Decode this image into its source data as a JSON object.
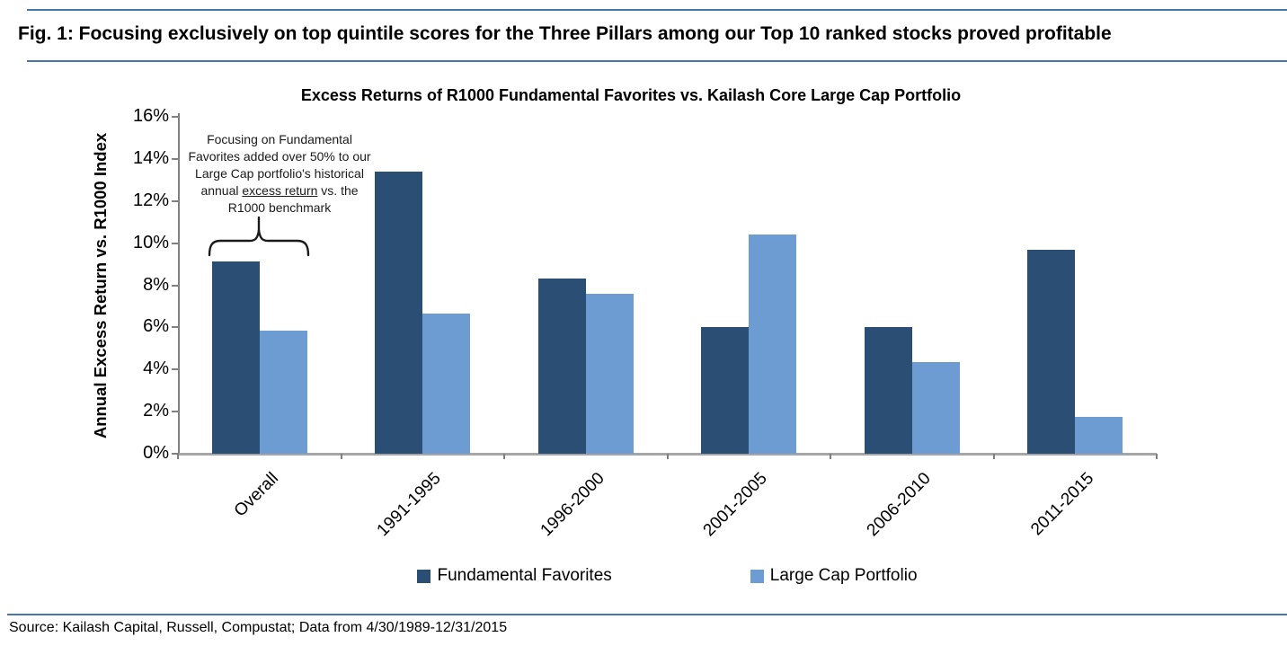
{
  "figure": {
    "heading": "Fig. 1: Focusing exclusively on top quintile scores for the Three Pillars among our Top 10 ranked stocks proved profitable",
    "source": "Source: Kailash Capital, Russell, Compustat; Data from 4/30/1989-12/31/2015"
  },
  "chart_data": {
    "type": "bar",
    "title": "Excess Returns of R1000 Fundamental Favorites vs. Kailash Core Large Cap Portfolio",
    "ylabel": "Annual Excess Return vs. R1000 Index",
    "xlabel": "",
    "categories": [
      "Overall",
      "1991-1995",
      "1996-2000",
      "2001-2005",
      "2006-2010",
      "2011-2015"
    ],
    "series": [
      {
        "name": "Fundamental Favorites",
        "color": "#2B4E74",
        "values": [
          9.15,
          13.4,
          8.3,
          6.0,
          6.0,
          9.7
        ]
      },
      {
        "name": "Large Cap Portfolio",
        "color": "#6C9CD2",
        "values": [
          5.85,
          6.65,
          7.6,
          10.4,
          4.35,
          1.75
        ]
      }
    ],
    "ylim": [
      0,
      16
    ],
    "ytick_step": 2,
    "ytick_suffix": "%",
    "grid": false,
    "legend_position": "bottom",
    "annotation": {
      "text_before": "Focusing on Fundamental Favorites added over 50% to our Large Cap portfolio's historical annual ",
      "text_underlined": "excess return",
      "text_after": " vs. the R1000 benchmark"
    }
  },
  "colors": {
    "rule_blue": "#4677A8",
    "axis_gray": "#808080",
    "baseline_gray": "#A6A6A6",
    "dark_series": "#2B4E74",
    "light_series": "#6C9CD2"
  }
}
